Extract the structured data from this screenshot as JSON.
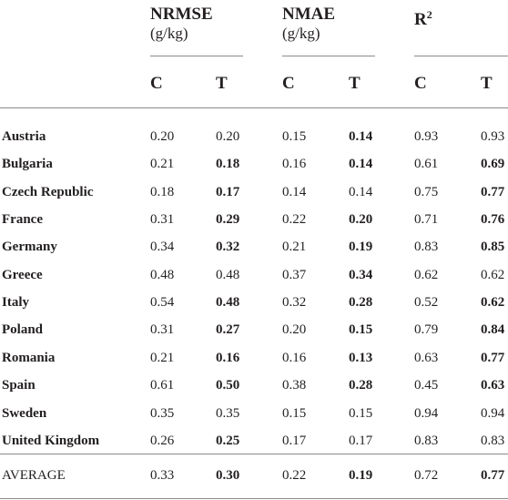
{
  "headers": {
    "groups": [
      {
        "title": "NRMSE",
        "unit": "(g/kg)"
      },
      {
        "title": "NMAE",
        "unit": "(g/kg)"
      },
      {
        "title": "R",
        "sup": "2"
      }
    ],
    "sub": [
      "C",
      "T",
      "C",
      "T",
      "C",
      "T"
    ]
  },
  "rows": [
    {
      "country": "Austria",
      "values": [
        "0.20",
        "0.20",
        "0.15",
        "0.14",
        "0.93",
        "0.93"
      ],
      "bold": [
        false,
        false,
        false,
        true,
        false,
        false
      ]
    },
    {
      "country": "Bulgaria",
      "values": [
        "0.21",
        "0.18",
        "0.16",
        "0.14",
        "0.61",
        "0.69"
      ],
      "bold": [
        false,
        true,
        false,
        true,
        false,
        true
      ]
    },
    {
      "country": "Czech Republic",
      "values": [
        "0.18",
        "0.17",
        "0.14",
        "0.14",
        "0.75",
        "0.77"
      ],
      "bold": [
        false,
        true,
        false,
        false,
        false,
        true
      ]
    },
    {
      "country": "France",
      "values": [
        "0.31",
        "0.29",
        "0.22",
        "0.20",
        "0.71",
        "0.76"
      ],
      "bold": [
        false,
        true,
        false,
        true,
        false,
        true
      ]
    },
    {
      "country": "Germany",
      "values": [
        "0.34",
        "0.32",
        "0.21",
        "0.19",
        "0.83",
        "0.85"
      ],
      "bold": [
        false,
        true,
        false,
        true,
        false,
        true
      ]
    },
    {
      "country": "Greece",
      "values": [
        "0.48",
        "0.48",
        "0.37",
        "0.34",
        "0.62",
        "0.62"
      ],
      "bold": [
        false,
        false,
        false,
        true,
        false,
        false
      ]
    },
    {
      "country": "Italy",
      "values": [
        "0.54",
        "0.48",
        "0.32",
        "0.28",
        "0.52",
        "0.62"
      ],
      "bold": [
        false,
        true,
        false,
        true,
        false,
        true
      ]
    },
    {
      "country": "Poland",
      "values": [
        "0.31",
        "0.27",
        "0.20",
        "0.15",
        "0.79",
        "0.84"
      ],
      "bold": [
        false,
        true,
        false,
        true,
        false,
        true
      ]
    },
    {
      "country": "Romania",
      "values": [
        "0.21",
        "0.16",
        "0.16",
        "0.13",
        "0.63",
        "0.77"
      ],
      "bold": [
        false,
        true,
        false,
        true,
        false,
        true
      ]
    },
    {
      "country": "Spain",
      "values": [
        "0.61",
        "0.50",
        "0.38",
        "0.28",
        "0.45",
        "0.63"
      ],
      "bold": [
        false,
        true,
        false,
        true,
        false,
        true
      ]
    },
    {
      "country": "Sweden",
      "values": [
        "0.35",
        "0.35",
        "0.15",
        "0.15",
        "0.94",
        "0.94"
      ],
      "bold": [
        false,
        false,
        false,
        false,
        false,
        false
      ]
    },
    {
      "country": "United Kingdom",
      "values": [
        "0.26",
        "0.25",
        "0.17",
        "0.17",
        "0.83",
        "0.83"
      ],
      "bold": [
        false,
        true,
        false,
        false,
        false,
        false
      ]
    }
  ],
  "average": {
    "label": "AVERAGE",
    "values": [
      "0.33",
      "0.30",
      "0.22",
      "0.19",
      "0.72",
      "0.77"
    ],
    "bold": [
      false,
      true,
      false,
      true,
      false,
      true
    ]
  }
}
